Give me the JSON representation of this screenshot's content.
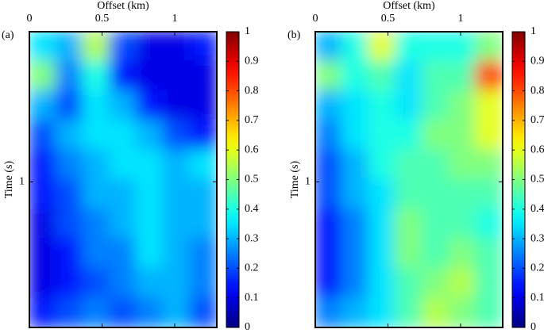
{
  "chart_data": [
    {
      "type": "heatmap",
      "panel_label": "(a)",
      "x_label": "Offset (km)",
      "y_label": "Time (s)",
      "xlim": [
        0,
        1.29
      ],
      "xticks": [
        0,
        0.5,
        1
      ],
      "ylim": [
        0,
        1.97
      ],
      "yticks": [
        1
      ],
      "colormap": "jet",
      "clim": [
        0,
        1
      ],
      "cticks": [
        0,
        0.1,
        0.2,
        0.3,
        0.4,
        0.5,
        0.6,
        0.7,
        0.8,
        0.9,
        1
      ],
      "z": [
        [
          0.35,
          0.3,
          0.55,
          0.2,
          0.1,
          0.1,
          0.15
        ],
        [
          0.5,
          0.25,
          0.4,
          0.15,
          0.1,
          0.1,
          0.1
        ],
        [
          0.3,
          0.2,
          0.35,
          0.3,
          0.15,
          0.1,
          0.1
        ],
        [
          0.2,
          0.3,
          0.35,
          0.35,
          0.3,
          0.2,
          0.15
        ],
        [
          0.15,
          0.25,
          0.3,
          0.35,
          0.35,
          0.3,
          0.35
        ],
        [
          0.15,
          0.2,
          0.3,
          0.3,
          0.35,
          0.3,
          0.3
        ],
        [
          0.1,
          0.2,
          0.25,
          0.3,
          0.35,
          0.3,
          0.3
        ],
        [
          0.1,
          0.15,
          0.25,
          0.25,
          0.35,
          0.3,
          0.25
        ],
        [
          0.1,
          0.15,
          0.2,
          0.25,
          0.3,
          0.3,
          0.25
        ],
        [
          0.15,
          0.2,
          0.25,
          0.2,
          0.25,
          0.3,
          0.2
        ]
      ]
    },
    {
      "type": "heatmap",
      "panel_label": "(b)",
      "x_label": "Offset (km)",
      "y_label": "Time (s)",
      "xlim": [
        0,
        1.29
      ],
      "xticks": [
        0,
        0.5,
        1
      ],
      "ylim": [
        0,
        1.97
      ],
      "yticks": [
        1
      ],
      "colormap": "jet",
      "clim": [
        0,
        1
      ],
      "cticks": [
        0,
        0.1,
        0.2,
        0.3,
        0.4,
        0.5,
        0.6,
        0.7,
        0.8,
        0.9,
        1
      ],
      "z": [
        [
          0.3,
          0.4,
          0.6,
          0.4,
          0.4,
          0.4,
          0.5
        ],
        [
          0.5,
          0.4,
          0.45,
          0.35,
          0.45,
          0.45,
          0.8
        ],
        [
          0.3,
          0.35,
          0.4,
          0.35,
          0.45,
          0.5,
          0.6
        ],
        [
          0.25,
          0.35,
          0.4,
          0.4,
          0.5,
          0.5,
          0.6
        ],
        [
          0.2,
          0.3,
          0.4,
          0.45,
          0.45,
          0.5,
          0.5
        ],
        [
          0.2,
          0.3,
          0.35,
          0.45,
          0.45,
          0.45,
          0.45
        ],
        [
          0.15,
          0.25,
          0.35,
          0.5,
          0.45,
          0.45,
          0.4
        ],
        [
          0.15,
          0.25,
          0.35,
          0.5,
          0.45,
          0.5,
          0.45
        ],
        [
          0.15,
          0.25,
          0.35,
          0.45,
          0.5,
          0.55,
          0.45
        ],
        [
          0.25,
          0.3,
          0.35,
          0.45,
          0.55,
          0.5,
          0.45
        ]
      ]
    }
  ]
}
